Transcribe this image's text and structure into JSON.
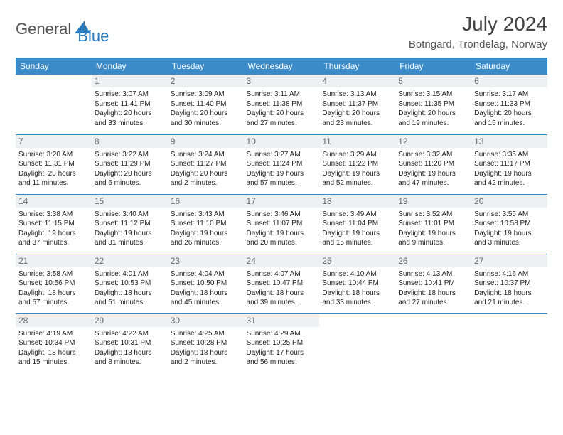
{
  "brand": {
    "part1": "General",
    "part2": "Blue",
    "logo_color": "#2b7bbf",
    "text1_color": "#555"
  },
  "title": "July 2024",
  "location": "Botngard, Trondelag, Norway",
  "header_bg": "#3b8bc9",
  "daynum_bg": "#eef1f3",
  "weekdays": [
    "Sunday",
    "Monday",
    "Tuesday",
    "Wednesday",
    "Thursday",
    "Friday",
    "Saturday"
  ],
  "start_offset": 1,
  "days": [
    {
      "n": 1,
      "sr": "3:07 AM",
      "ss": "11:41 PM",
      "dl": "20 hours and 33 minutes."
    },
    {
      "n": 2,
      "sr": "3:09 AM",
      "ss": "11:40 PM",
      "dl": "20 hours and 30 minutes."
    },
    {
      "n": 3,
      "sr": "3:11 AM",
      "ss": "11:38 PM",
      "dl": "20 hours and 27 minutes."
    },
    {
      "n": 4,
      "sr": "3:13 AM",
      "ss": "11:37 PM",
      "dl": "20 hours and 23 minutes."
    },
    {
      "n": 5,
      "sr": "3:15 AM",
      "ss": "11:35 PM",
      "dl": "20 hours and 19 minutes."
    },
    {
      "n": 6,
      "sr": "3:17 AM",
      "ss": "11:33 PM",
      "dl": "20 hours and 15 minutes."
    },
    {
      "n": 7,
      "sr": "3:20 AM",
      "ss": "11:31 PM",
      "dl": "20 hours and 11 minutes."
    },
    {
      "n": 8,
      "sr": "3:22 AM",
      "ss": "11:29 PM",
      "dl": "20 hours and 6 minutes."
    },
    {
      "n": 9,
      "sr": "3:24 AM",
      "ss": "11:27 PM",
      "dl": "20 hours and 2 minutes."
    },
    {
      "n": 10,
      "sr": "3:27 AM",
      "ss": "11:24 PM",
      "dl": "19 hours and 57 minutes."
    },
    {
      "n": 11,
      "sr": "3:29 AM",
      "ss": "11:22 PM",
      "dl": "19 hours and 52 minutes."
    },
    {
      "n": 12,
      "sr": "3:32 AM",
      "ss": "11:20 PM",
      "dl": "19 hours and 47 minutes."
    },
    {
      "n": 13,
      "sr": "3:35 AM",
      "ss": "11:17 PM",
      "dl": "19 hours and 42 minutes."
    },
    {
      "n": 14,
      "sr": "3:38 AM",
      "ss": "11:15 PM",
      "dl": "19 hours and 37 minutes."
    },
    {
      "n": 15,
      "sr": "3:40 AM",
      "ss": "11:12 PM",
      "dl": "19 hours and 31 minutes."
    },
    {
      "n": 16,
      "sr": "3:43 AM",
      "ss": "11:10 PM",
      "dl": "19 hours and 26 minutes."
    },
    {
      "n": 17,
      "sr": "3:46 AM",
      "ss": "11:07 PM",
      "dl": "19 hours and 20 minutes."
    },
    {
      "n": 18,
      "sr": "3:49 AM",
      "ss": "11:04 PM",
      "dl": "19 hours and 15 minutes."
    },
    {
      "n": 19,
      "sr": "3:52 AM",
      "ss": "11:01 PM",
      "dl": "19 hours and 9 minutes."
    },
    {
      "n": 20,
      "sr": "3:55 AM",
      "ss": "10:58 PM",
      "dl": "19 hours and 3 minutes."
    },
    {
      "n": 21,
      "sr": "3:58 AM",
      "ss": "10:56 PM",
      "dl": "18 hours and 57 minutes."
    },
    {
      "n": 22,
      "sr": "4:01 AM",
      "ss": "10:53 PM",
      "dl": "18 hours and 51 minutes."
    },
    {
      "n": 23,
      "sr": "4:04 AM",
      "ss": "10:50 PM",
      "dl": "18 hours and 45 minutes."
    },
    {
      "n": 24,
      "sr": "4:07 AM",
      "ss": "10:47 PM",
      "dl": "18 hours and 39 minutes."
    },
    {
      "n": 25,
      "sr": "4:10 AM",
      "ss": "10:44 PM",
      "dl": "18 hours and 33 minutes."
    },
    {
      "n": 26,
      "sr": "4:13 AM",
      "ss": "10:41 PM",
      "dl": "18 hours and 27 minutes."
    },
    {
      "n": 27,
      "sr": "4:16 AM",
      "ss": "10:37 PM",
      "dl": "18 hours and 21 minutes."
    },
    {
      "n": 28,
      "sr": "4:19 AM",
      "ss": "10:34 PM",
      "dl": "18 hours and 15 minutes."
    },
    {
      "n": 29,
      "sr": "4:22 AM",
      "ss": "10:31 PM",
      "dl": "18 hours and 8 minutes."
    },
    {
      "n": 30,
      "sr": "4:25 AM",
      "ss": "10:28 PM",
      "dl": "18 hours and 2 minutes."
    },
    {
      "n": 31,
      "sr": "4:29 AM",
      "ss": "10:25 PM",
      "dl": "17 hours and 56 minutes."
    }
  ],
  "labels": {
    "sunrise": "Sunrise:",
    "sunset": "Sunset:",
    "daylight": "Daylight:"
  }
}
